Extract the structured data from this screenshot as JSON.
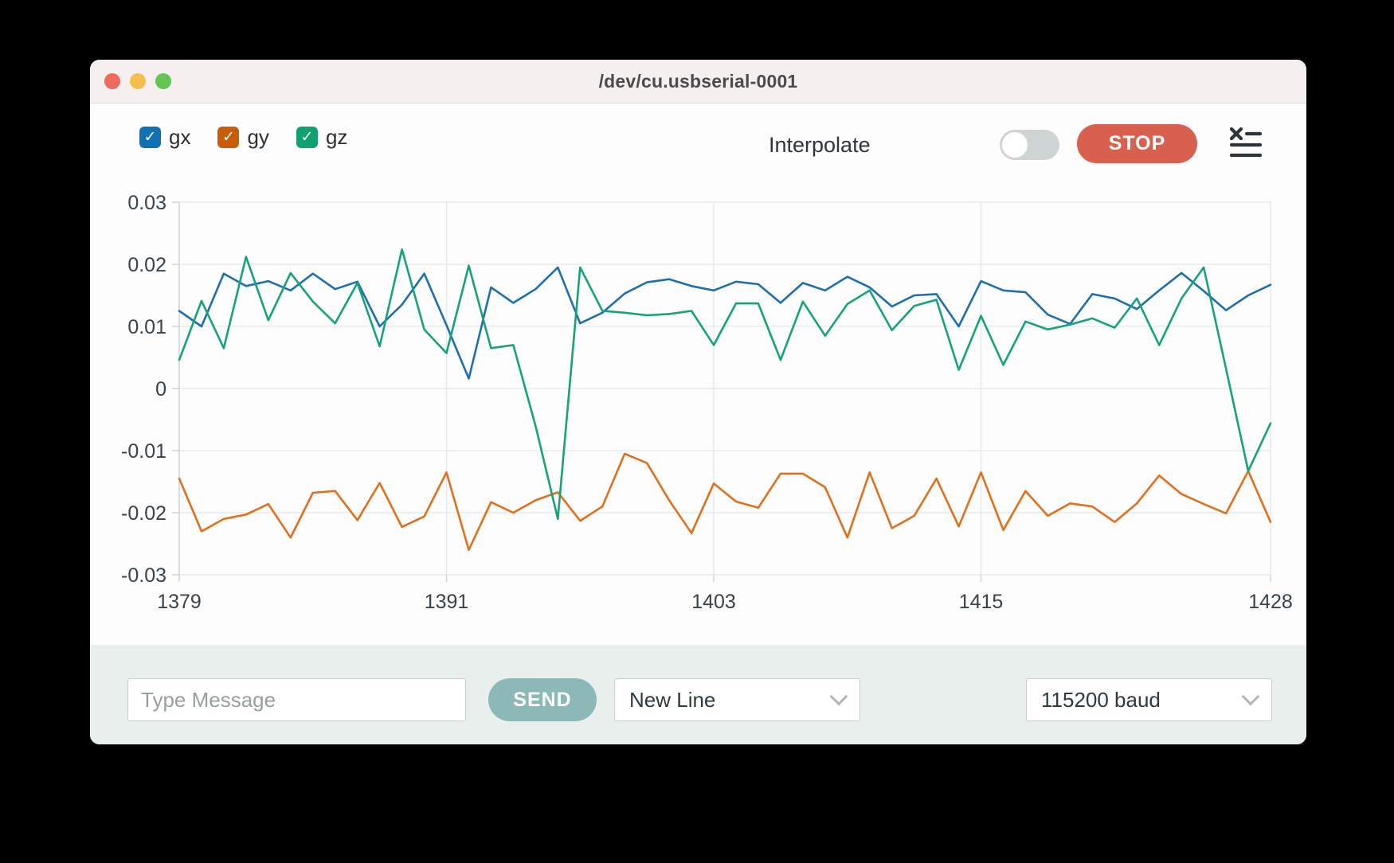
{
  "window": {
    "title": "/dev/cu.usbserial-0001"
  },
  "titlebar_buttons": {
    "close": "close",
    "minimize": "minimize",
    "zoom": "zoom"
  },
  "legend": [
    {
      "label": "gx",
      "checked": true,
      "color": "#1071b3",
      "check_glyph": "✓"
    },
    {
      "label": "gy",
      "checked": true,
      "color": "#c85c08",
      "check_glyph": "✓"
    },
    {
      "label": "gz",
      "checked": true,
      "color": "#11a06f",
      "check_glyph": "✓"
    }
  ],
  "controls": {
    "interpolate_label": "Interpolate",
    "interpolate_on": false,
    "stop_label": "STOP",
    "stop_color": "#d8604e"
  },
  "chart_data": {
    "type": "line",
    "xlim": [
      1379,
      1428
    ],
    "ylim": [
      -0.03,
      0.03
    ],
    "xticks": [
      1379,
      1391,
      1403,
      1415,
      1428
    ],
    "yticks": [
      0.03,
      0.02,
      0.01,
      0,
      -0.01,
      -0.02,
      -0.03
    ],
    "grid": true,
    "grid_color": "#e3e9ea",
    "axis_color": "#cfd6d8",
    "label_color": "#39434b",
    "x": [
      1379,
      1380,
      1381,
      1382,
      1383,
      1384,
      1385,
      1386,
      1387,
      1388,
      1389,
      1390,
      1391,
      1392,
      1393,
      1394,
      1395,
      1396,
      1397,
      1398,
      1399,
      1400,
      1401,
      1402,
      1403,
      1404,
      1405,
      1406,
      1407,
      1408,
      1409,
      1410,
      1411,
      1412,
      1413,
      1414,
      1415,
      1416,
      1417,
      1418,
      1419,
      1420,
      1421,
      1422,
      1423,
      1424,
      1425,
      1426,
      1427,
      1428
    ],
    "series": [
      {
        "name": "gx",
        "color": "#1e6fae",
        "values": [
          0.0125,
          0.01,
          0.0185,
          0.0165,
          0.0173,
          0.0158,
          0.0185,
          0.016,
          0.0172,
          0.01,
          0.0135,
          0.0185,
          0.0102,
          0.0016,
          0.0163,
          0.0138,
          0.016,
          0.0195,
          0.0105,
          0.0122,
          0.0153,
          0.0171,
          0.0176,
          0.0165,
          0.0158,
          0.0172,
          0.0168,
          0.0138,
          0.017,
          0.0158,
          0.018,
          0.0163,
          0.0132,
          0.015,
          0.0152,
          0.01,
          0.0173,
          0.0158,
          0.0155,
          0.0119,
          0.0104,
          0.0152,
          0.0145,
          0.0128,
          0.0158,
          0.0186,
          0.0157,
          0.0126,
          0.015,
          0.0167
        ]
      },
      {
        "name": "gy",
        "color": "#e0701e",
        "values": [
          -0.0145,
          -0.023,
          -0.021,
          -0.0203,
          -0.0186,
          -0.024,
          -0.0168,
          -0.0165,
          -0.0212,
          -0.0152,
          -0.0223,
          -0.0206,
          -0.0135,
          -0.026,
          -0.0183,
          -0.02,
          -0.018,
          -0.0167,
          -0.0213,
          -0.019,
          -0.0105,
          -0.012,
          -0.018,
          -0.0233,
          -0.0153,
          -0.0182,
          -0.0192,
          -0.0137,
          -0.0137,
          -0.0159,
          -0.024,
          -0.0135,
          -0.0225,
          -0.0205,
          -0.0145,
          -0.0222,
          -0.0135,
          -0.0228,
          -0.0165,
          -0.0205,
          -0.0185,
          -0.019,
          -0.0215,
          -0.0185,
          -0.014,
          -0.017,
          -0.0186,
          -0.0201,
          -0.0133,
          -0.0215
        ]
      },
      {
        "name": "gz",
        "color": "#16a37a",
        "values": [
          0.0046,
          0.0141,
          0.0065,
          0.0212,
          0.011,
          0.0186,
          0.014,
          0.0105,
          0.017,
          0.0068,
          0.0224,
          0.0095,
          0.0057,
          0.0198,
          0.0065,
          0.007,
          -0.006,
          -0.021,
          0.0195,
          0.0125,
          0.0122,
          0.0118,
          0.012,
          0.0125,
          0.007,
          0.0137,
          0.0137,
          0.0046,
          0.014,
          0.0085,
          0.0136,
          0.0158,
          0.0094,
          0.0133,
          0.0143,
          0.003,
          0.0117,
          0.0038,
          0.0108,
          0.0095,
          0.0103,
          0.0113,
          0.0098,
          0.0145,
          0.007,
          0.0145,
          0.0195,
          0.0032,
          -0.0133,
          -0.0056
        ]
      }
    ]
  },
  "footer": {
    "message_placeholder": "Type Message",
    "message_value": "",
    "send_label": "SEND",
    "send_color": "#8db8b8",
    "line_ending_selected": "New Line",
    "baud_selected": "115200 baud"
  }
}
